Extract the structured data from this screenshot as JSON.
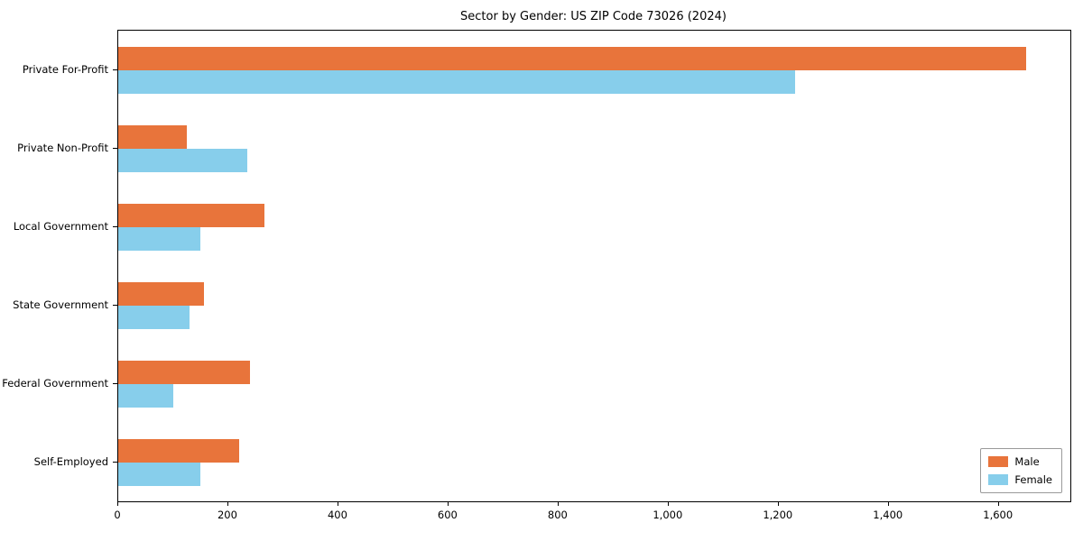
{
  "chart_data": {
    "type": "bar",
    "orientation": "horizontal",
    "title": "Sector by Gender: US ZIP Code 73026 (2024)",
    "categories": [
      "Private For-Profit",
      "Private Non-Profit",
      "Local Government",
      "State Government",
      "Federal Government",
      "Self-Employed"
    ],
    "series": [
      {
        "name": "Male",
        "color": "#e8743b",
        "values": [
          1650,
          125,
          265,
          155,
          240,
          220
        ]
      },
      {
        "name": "Female",
        "color": "#87ceeb",
        "values": [
          1230,
          235,
          150,
          130,
          100,
          150
        ]
      }
    ],
    "xlabel": "",
    "ylabel": "",
    "xlim": [
      0,
      1730
    ],
    "xticks": [
      0,
      200,
      400,
      600,
      800,
      1000,
      1200,
      1400,
      1600
    ],
    "xtick_labels": [
      "0",
      "200",
      "400",
      "600",
      "800",
      "1,000",
      "1,200",
      "1,400",
      "1,600"
    ],
    "grid": false,
    "legend": {
      "position": "lower right",
      "entries": [
        "Male",
        "Female"
      ]
    }
  }
}
